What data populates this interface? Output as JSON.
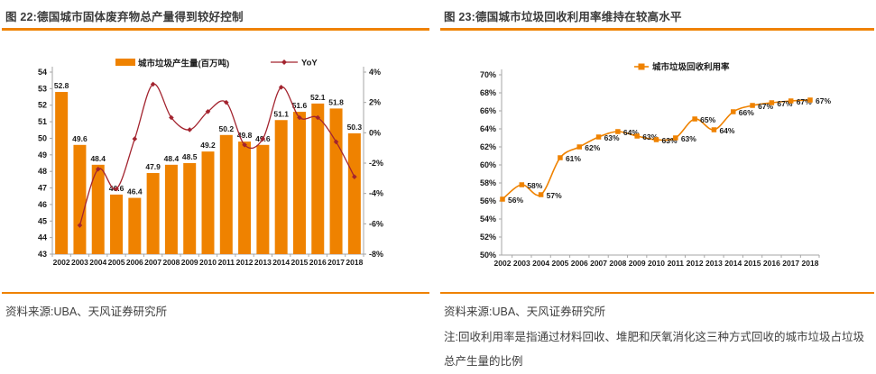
{
  "colors": {
    "orange": "#ef8200",
    "dark_red": "#a3242f",
    "axis_line": "#a6a6a6",
    "tick_text": "#1a1a1a",
    "title_text": "#3b3b3b"
  },
  "figure22": {
    "source": "资料来源:UBA、天风证券研究所"
  },
  "figure23": {
    "source": "资料来源:UBA、天风证券研究所",
    "note": "注:回收利用率是指通过材料回收、堆肥和厌氧消化这三种方式回收的城市垃圾占垃圾总产生量的比例"
  },
  "chart_data": [
    {
      "id": "municipal-solid-waste-production",
      "type": "bar+line",
      "title": "图 22:德国城市固体废弃物总产量得到较好控制",
      "categories": [
        "2002",
        "2003",
        "2004",
        "2005",
        "2006",
        "2007",
        "2008",
        "2009",
        "2010",
        "2011",
        "2012",
        "2013",
        "2014",
        "2015",
        "2016",
        "2017",
        "2018"
      ],
      "series": [
        {
          "name": "城市垃圾产生量(百万吨)",
          "type": "bar",
          "axis": "left",
          "values": [
            52.8,
            49.6,
            48.4,
            46.6,
            46.4,
            47.9,
            48.4,
            48.5,
            49.2,
            50.2,
            49.8,
            49.6,
            51.1,
            51.6,
            52.1,
            51.8,
            50.3
          ]
        },
        {
          "name": "YoY",
          "type": "line",
          "axis": "right",
          "start_index": 1,
          "values": [
            -6.1,
            -2.4,
            -3.7,
            -0.4,
            3.2,
            1.0,
            0.2,
            1.4,
            2.0,
            -0.8,
            -0.4,
            3.0,
            1.0,
            1.0,
            -0.6,
            -2.9
          ]
        }
      ],
      "left_axis": {
        "min": 43,
        "max": 54,
        "step": 1
      },
      "right_axis": {
        "min": -8,
        "max": 4,
        "step": 2,
        "suffix": "%"
      },
      "legend_position": "top",
      "grid": false
    },
    {
      "id": "municipal-waste-recycling-rate",
      "type": "line",
      "title": "图 23:德国城市垃圾回收利用率维持在较高水平",
      "categories": [
        "2002",
        "2003",
        "2004",
        "2005",
        "2006",
        "2007",
        "2008",
        "2009",
        "2010",
        "2011",
        "2012",
        "2013",
        "2014",
        "2015",
        "2016",
        "2017",
        "2018"
      ],
      "series": [
        {
          "name": "城市垃圾回收利用率",
          "values": [
            56.2,
            57.8,
            56.7,
            60.8,
            62.0,
            63.1,
            63.7,
            63.2,
            62.8,
            63.0,
            65.1,
            63.9,
            65.9,
            66.6,
            66.9,
            67.1,
            67.2
          ],
          "labels": [
            "56%",
            "58%",
            "57%",
            "61%",
            "62%",
            "63%",
            "64%",
            "63%",
            "63%",
            "63%",
            "65%",
            "64%",
            "66%",
            "67%",
            "67%",
            "67%",
            "67%"
          ]
        }
      ],
      "y_axis": {
        "min": 50,
        "max": 70,
        "step": 2,
        "suffix": "%"
      },
      "legend_position": "top",
      "grid": false
    }
  ]
}
